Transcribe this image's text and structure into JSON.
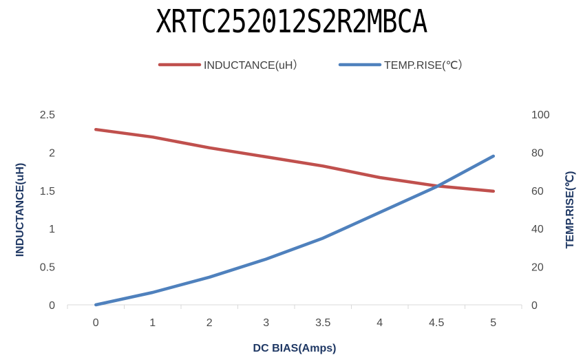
{
  "chart_data": {
    "type": "line",
    "title": "XRTC252012S2R2MBCA",
    "categories": [
      "0",
      "1",
      "2",
      "3",
      "3.5",
      "4",
      "4.5",
      "5"
    ],
    "xlabel": "DC BIAS(Amps)",
    "ylabel": "INDUCTANCE(uH)",
    "y2label": "TEMP.RISE(℃)",
    "ylim": [
      0,
      2.5
    ],
    "y2lim": [
      0,
      100
    ],
    "yticks": [
      "0",
      "0.5",
      "1",
      "1.5",
      "2",
      "2.5"
    ],
    "y2ticks": [
      "0",
      "20",
      "40",
      "60",
      "80",
      "100"
    ],
    "grid": false,
    "legend_position": "top",
    "series": [
      {
        "name": "INDUCTANCE(uH）",
        "axis": "left",
        "color": "#c0504d",
        "values": [
          2.3,
          2.2,
          2.06,
          1.94,
          1.82,
          1.67,
          1.56,
          1.49
        ]
      },
      {
        "name": "TEMP.RISE(℃）",
        "axis": "right",
        "color": "#4f81bd",
        "values": [
          0,
          6.5,
          14.5,
          24,
          35,
          48.5,
          62,
          78
        ]
      }
    ]
  }
}
